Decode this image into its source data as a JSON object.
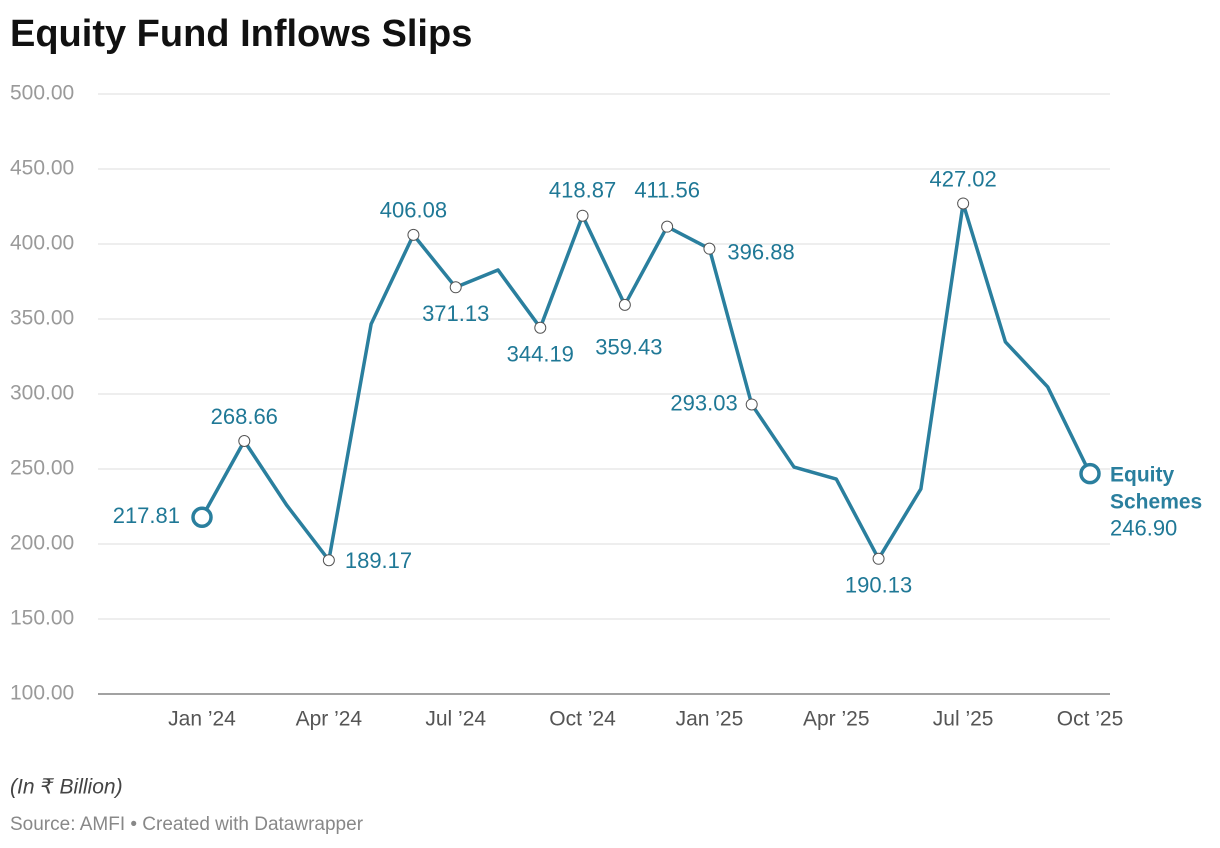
{
  "chart_data": {
    "type": "line",
    "title": "Equity Fund Inflows Slips",
    "note": "(In ₹ Billion)",
    "source": "Source: AMFI • Created with Datawrapper",
    "categories": [
      "Jan ’24",
      null,
      null,
      "Apr ’24",
      null,
      null,
      "Jul ’24",
      null,
      null,
      "Oct ’24",
      null,
      null,
      "Jan ’25",
      null,
      null,
      "Apr ’25",
      null,
      null,
      "Jul ’25",
      null,
      null,
      "Oct ’25"
    ],
    "series": [
      {
        "name": "Equity Schemes",
        "color": "#2a7f9e",
        "values": [
          217.81,
          268.66,
          226,
          189.17,
          346.7,
          406.08,
          371.13,
          382.7,
          344.19,
          418.87,
          359.43,
          411.56,
          396.88,
          293.03,
          251.3,
          243.3,
          190.13,
          236.7,
          427.02,
          334.7,
          304.7,
          246.9
        ],
        "value_labels": [
          "217.81",
          "268.66",
          null,
          "189.17",
          null,
          "406.08",
          "371.13",
          null,
          "344.19",
          "418.87",
          "359.43",
          "411.56",
          "396.88",
          "293.03",
          null,
          null,
          "190.13",
          null,
          "427.02",
          null,
          null,
          "246.90"
        ]
      }
    ],
    "ylim": [
      100,
      500
    ],
    "yticks": [
      {
        "value": 100,
        "label": "100.00"
      },
      {
        "value": 150,
        "label": "150.00"
      },
      {
        "value": 200,
        "label": "200.00"
      },
      {
        "value": 250,
        "label": "250.00"
      },
      {
        "value": 300,
        "label": "300.00"
      },
      {
        "value": 350,
        "label": "350.00"
      },
      {
        "value": 400,
        "label": "400.00"
      },
      {
        "value": 450,
        "label": "450.00"
      },
      {
        "value": 500,
        "label": "500.00"
      }
    ],
    "grid": true
  }
}
